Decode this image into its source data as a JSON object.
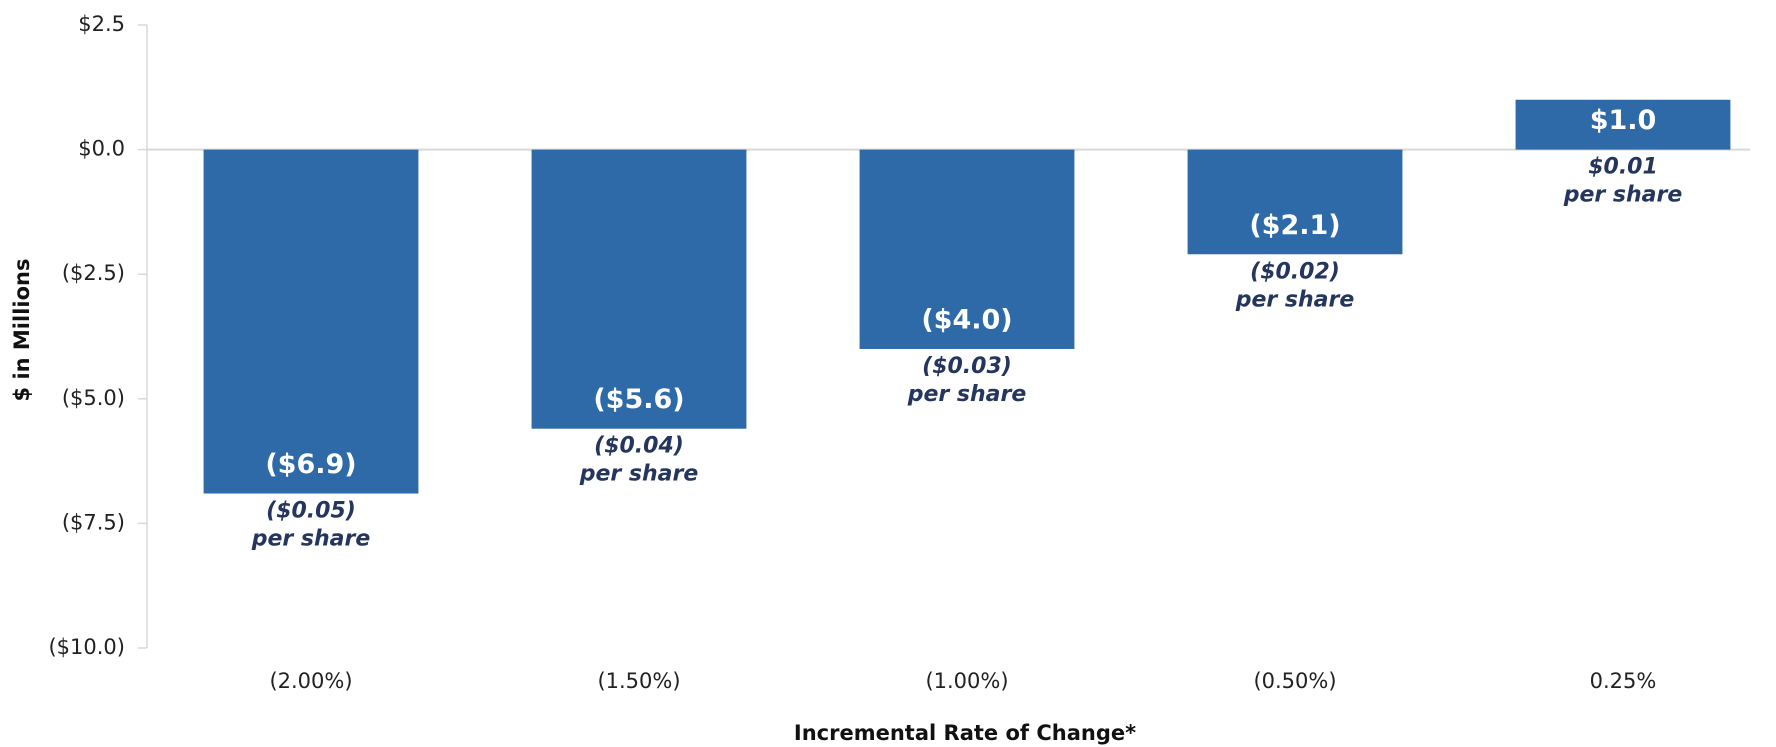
{
  "chart_data": {
    "type": "bar",
    "categories": [
      "(2.00%)",
      "(1.50%)",
      "(1.00%)",
      "(0.50%)",
      "0.25%"
    ],
    "values": [
      -6.9,
      -5.6,
      -4.0,
      -2.1,
      1.0
    ],
    "value_labels": [
      "($6.9)",
      "($5.6)",
      "($4.0)",
      "($2.1)",
      "$1.0"
    ],
    "per_share": [
      "($0.05)",
      "($0.04)",
      "($0.03)",
      "($0.02)",
      "$0.01"
    ],
    "per_share_suffix": "per share",
    "color": "#2e6aa8",
    "ylabel": "$ in Millions",
    "xlabel": "Incremental Rate of Change*",
    "ylim": [
      -10,
      2.5
    ],
    "yticks": [
      {
        "value": 2.5,
        "label": "$2.5"
      },
      {
        "value": 0,
        "label": "$0.0"
      },
      {
        "value": -2.5,
        "label": "($2.5)"
      },
      {
        "value": -5,
        "label": "($5.0)"
      },
      {
        "value": -7.5,
        "label": "($7.5)"
      },
      {
        "value": -10,
        "label": "($10.0)"
      }
    ]
  }
}
